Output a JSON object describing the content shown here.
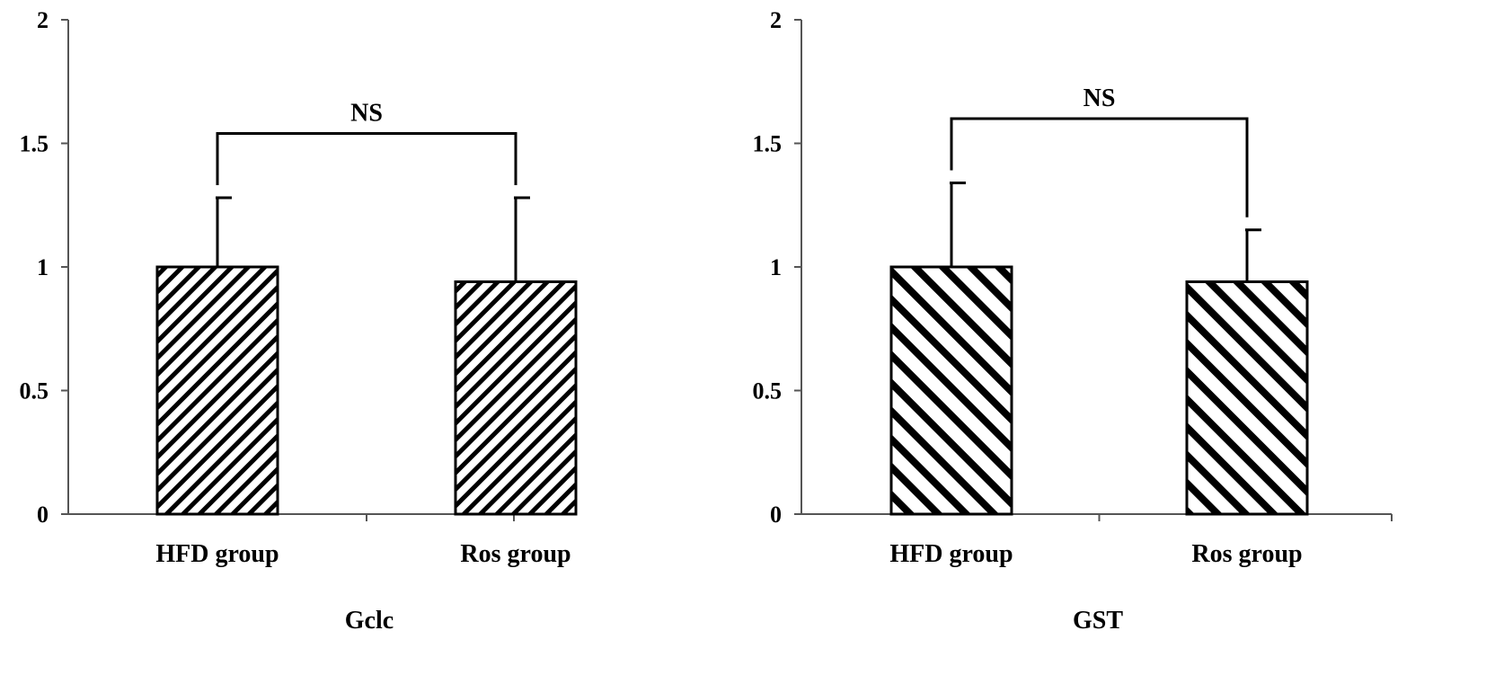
{
  "chart_data": [
    {
      "type": "bar",
      "categories": [
        "HFD group",
        "Ros group"
      ],
      "values": [
        1.0,
        0.94
      ],
      "error_upper": [
        1.28,
        1.28
      ],
      "title": "",
      "xlabel": "Gclc",
      "ylabel": "",
      "ylim": [
        0,
        2
      ],
      "yticks": [
        "0",
        "0.5",
        "1",
        "1.5",
        "2"
      ],
      "significance": {
        "label": "NS",
        "y": 1.54
      },
      "hatch": "fine-diagonal",
      "grid": false
    },
    {
      "type": "bar",
      "categories": [
        "HFD group",
        "Ros group"
      ],
      "values": [
        1.0,
        0.94
      ],
      "error_upper": [
        1.34,
        1.15
      ],
      "title": "",
      "xlabel": "GST",
      "ylabel": "",
      "ylim": [
        0,
        2
      ],
      "yticks": [
        "0",
        "0.5",
        "1",
        "1.5",
        "2"
      ],
      "significance": {
        "label": "NS",
        "y": 1.6
      },
      "hatch": "wide-diagonal",
      "grid": false
    }
  ]
}
